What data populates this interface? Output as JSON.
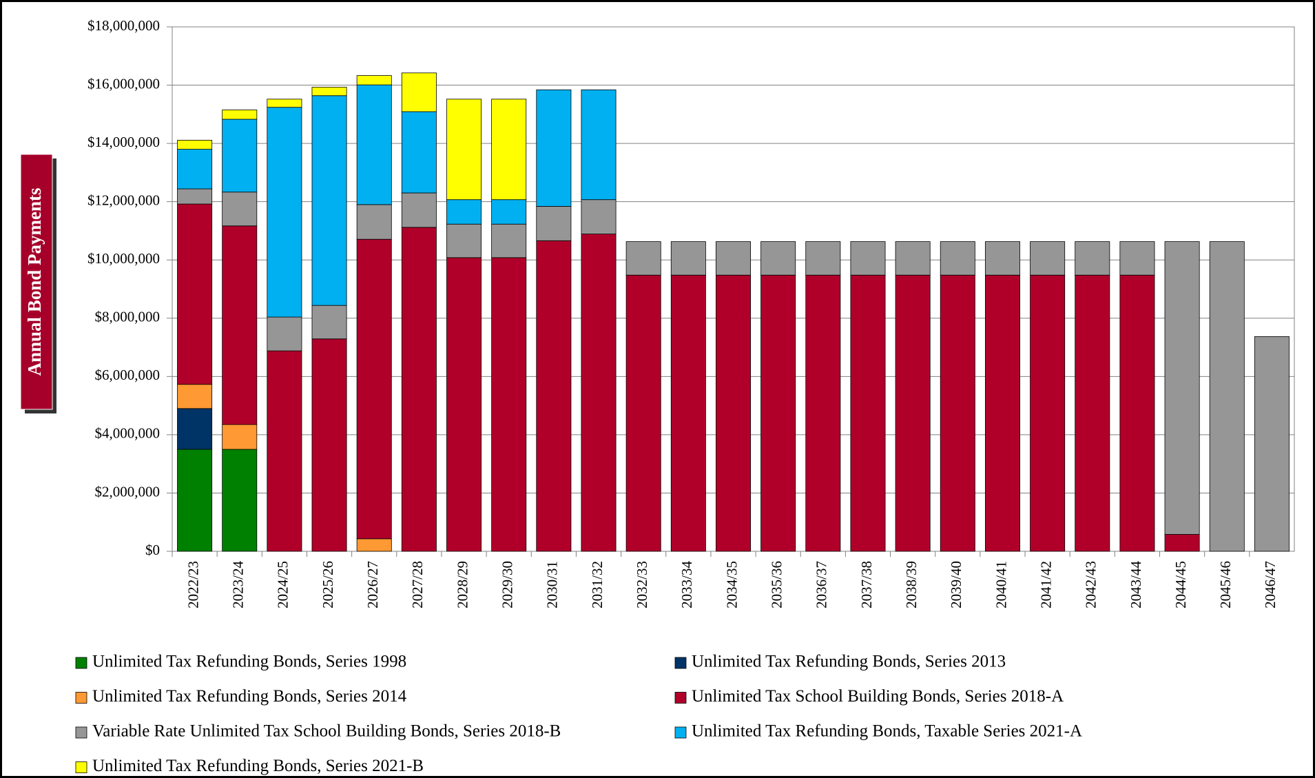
{
  "chart_data": {
    "type": "stacked_bar",
    "y_label": "Annual Bond Payments",
    "categories": [
      "2022/23",
      "2023/24",
      "2024/25",
      "2025/26",
      "2026/27",
      "2027/28",
      "2028/29",
      "2029/30",
      "2030/31",
      "2031/32",
      "2032/33",
      "2033/34",
      "2034/35",
      "2035/36",
      "2036/37",
      "2037/38",
      "2038/39",
      "2039/40",
      "2040/41",
      "2041/42",
      "2042/43",
      "2043/44",
      "2044/45",
      "2045/46",
      "2046/47"
    ],
    "ylim": [
      0,
      18000000
    ],
    "yticks": [
      {
        "value": 0,
        "label": "$0"
      },
      {
        "value": 2000000,
        "label": "$2,000,000"
      },
      {
        "value": 4000000,
        "label": "$4,000,000"
      },
      {
        "value": 6000000,
        "label": "$6,000,000"
      },
      {
        "value": 8000000,
        "label": "$8,000,000"
      },
      {
        "value": 10000000,
        "label": "$10,000,000"
      },
      {
        "value": 12000000,
        "label": "$12,000,000"
      },
      {
        "value": 14000000,
        "label": "$14,000,000"
      },
      {
        "value": 16000000,
        "label": "$16,000,000"
      },
      {
        "value": 18000000,
        "label": "$18,000,000"
      }
    ],
    "grid": true,
    "series": [
      {
        "name": "Unlimited Tax Refunding Bonds, Series 1998",
        "color": "#008000",
        "values": [
          3500000,
          3500000,
          0,
          0,
          0,
          0,
          0,
          0,
          0,
          0,
          0,
          0,
          0,
          0,
          0,
          0,
          0,
          0,
          0,
          0,
          0,
          0,
          0,
          0,
          0
        ]
      },
      {
        "name": "Unlimited Tax Refunding Bonds, Series 2013",
        "color": "#003366",
        "values": [
          1400000,
          0,
          0,
          0,
          0,
          0,
          0,
          0,
          0,
          0,
          0,
          0,
          0,
          0,
          0,
          0,
          0,
          0,
          0,
          0,
          0,
          0,
          0,
          0,
          0
        ]
      },
      {
        "name": "Unlimited Tax Refunding Bonds, Series 2014",
        "color": "#ff9933",
        "values": [
          830000,
          850000,
          0,
          0,
          430000,
          0,
          0,
          0,
          0,
          0,
          0,
          0,
          0,
          0,
          0,
          0,
          0,
          0,
          0,
          0,
          0,
          0,
          0,
          0,
          0
        ]
      },
      {
        "name": "Unlimited Tax School Building Bonds, Series 2018-A",
        "color": "#b0002a",
        "values": [
          6190000,
          6820000,
          6880000,
          7290000,
          10280000,
          11120000,
          10080000,
          10080000,
          10660000,
          10890000,
          9480000,
          9480000,
          9480000,
          9480000,
          9480000,
          9480000,
          9480000,
          9480000,
          9480000,
          9480000,
          9480000,
          9480000,
          580000,
          0,
          0
        ]
      },
      {
        "name": "Variable Rate Unlimited Tax School Building Bonds, Series 2018-B",
        "color": "#969696",
        "values": [
          520000,
          1160000,
          1160000,
          1150000,
          1190000,
          1180000,
          1150000,
          1150000,
          1180000,
          1180000,
          1150000,
          1150000,
          1150000,
          1150000,
          1150000,
          1150000,
          1150000,
          1150000,
          1150000,
          1150000,
          1150000,
          1150000,
          10050000,
          10630000,
          7370000
        ]
      },
      {
        "name": "Unlimited Tax Refunding Bonds, Taxable Series 2021-A",
        "color": "#00b0f0",
        "values": [
          1360000,
          2500000,
          7200000,
          7200000,
          4110000,
          2790000,
          840000,
          840000,
          4000000,
          3770000,
          0,
          0,
          0,
          0,
          0,
          0,
          0,
          0,
          0,
          0,
          0,
          0,
          0,
          0,
          0
        ]
      },
      {
        "name": "Unlimited Tax Refunding Bonds, Series 2021-B",
        "color": "#ffff00",
        "values": [
          310000,
          320000,
          280000,
          290000,
          320000,
          1330000,
          3450000,
          3450000,
          0,
          0,
          0,
          0,
          0,
          0,
          0,
          0,
          0,
          0,
          0,
          0,
          0,
          0,
          0,
          0,
          0
        ]
      }
    ]
  }
}
